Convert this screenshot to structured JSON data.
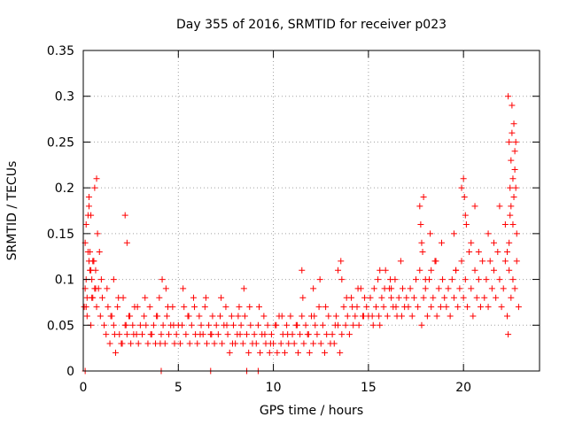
{
  "chart_data": {
    "type": "scatter",
    "title": "Day 355 of 2016, SRMTID for receiver p023",
    "xlabel": "GPS time / hours",
    "ylabel": "SRMTID / TECUs",
    "xlim": [
      0,
      24
    ],
    "ylim": [
      0,
      0.35
    ],
    "xticks": [
      0,
      5,
      10,
      15,
      20
    ],
    "xtick_labels": [
      "0",
      "5",
      "10",
      "15",
      "20"
    ],
    "yticks": [
      0,
      0.05,
      0.1,
      0.15,
      0.2,
      0.25,
      0.3,
      0.35
    ],
    "ytick_labels": [
      "0",
      "0.05",
      "0.1",
      "0.15",
      "0.2",
      "0.25",
      "0.3",
      "0.35"
    ],
    "grid": true,
    "marker": "+",
    "color": "#ff0000",
    "series": [
      {
        "name": "SRMTID",
        "x": [
          0.05,
          0.1,
          0.15,
          0.2,
          0.25,
          0.3,
          0.35,
          0.4,
          0.45,
          0.5,
          0.55,
          0.6,
          0.65,
          0.7,
          0.75,
          0.8,
          0.85,
          0.9,
          0.95,
          1.0,
          0.1,
          0.2,
          0.3,
          0.4,
          0.5,
          0.6,
          0.7,
          0.15,
          0.35,
          0.45,
          0.55,
          0.25,
          0.65,
          0.4,
          0.15,
          0.3,
          1.1,
          1.2,
          1.3,
          1.4,
          1.5,
          1.6,
          1.7,
          1.8,
          1.9,
          2.0,
          2.1,
          2.2,
          2.3,
          2.4,
          2.5,
          2.6,
          2.7,
          2.8,
          2.9,
          3.0,
          1.25,
          1.45,
          1.65,
          1.85,
          2.05,
          2.25,
          2.45,
          2.65,
          2.85,
          2.2,
          2.3,
          1.6,
          3.1,
          3.2,
          3.3,
          3.4,
          3.5,
          3.6,
          3.7,
          3.8,
          3.9,
          4.0,
          4.1,
          4.2,
          4.3,
          4.4,
          4.5,
          4.6,
          4.7,
          4.8,
          4.9,
          5.0,
          3.25,
          3.55,
          3.85,
          4.15,
          4.45,
          4.75,
          4.05,
          4.35,
          5.1,
          5.2,
          5.3,
          5.4,
          5.5,
          5.6,
          5.7,
          5.8,
          5.9,
          6.0,
          6.1,
          6.2,
          6.3,
          6.4,
          6.5,
          6.6,
          6.7,
          6.8,
          6.9,
          7.0,
          5.25,
          5.55,
          5.85,
          6.15,
          6.45,
          6.75,
          7.1,
          7.2,
          7.3,
          7.4,
          7.5,
          7.6,
          7.7,
          7.8,
          7.9,
          8.0,
          8.1,
          8.2,
          8.3,
          8.4,
          8.5,
          8.6,
          8.7,
          8.8,
          8.9,
          9.0,
          7.25,
          7.55,
          7.85,
          8.15,
          8.45,
          8.75,
          8.25,
          9.1,
          9.2,
          9.3,
          9.4,
          9.5,
          9.6,
          9.7,
          9.8,
          9.9,
          10.0,
          10.1,
          10.2,
          10.3,
          10.4,
          10.5,
          10.6,
          10.7,
          10.8,
          10.9,
          11.0,
          9.25,
          9.55,
          9.85,
          10.15,
          10.45,
          10.75,
          11.1,
          11.2,
          11.3,
          11.4,
          11.5,
          11.6,
          11.7,
          11.8,
          11.9,
          12.0,
          12.1,
          12.2,
          12.3,
          12.4,
          12.5,
          12.6,
          12.7,
          12.8,
          12.9,
          13.0,
          11.25,
          11.55,
          11.85,
          12.15,
          12.45,
          12.75,
          11.5,
          12.1,
          13.1,
          13.2,
          13.3,
          13.4,
          13.5,
          13.6,
          13.7,
          13.8,
          13.9,
          14.0,
          14.1,
          14.2,
          14.3,
          14.4,
          14.5,
          14.6,
          14.7,
          14.8,
          14.9,
          15.0,
          13.25,
          13.55,
          13.85,
          14.15,
          14.45,
          14.75,
          13.4,
          13.6,
          15.1,
          15.2,
          15.3,
          15.4,
          15.5,
          15.6,
          15.7,
          15.8,
          15.9,
          16.0,
          16.1,
          16.2,
          16.3,
          16.4,
          16.5,
          16.6,
          16.7,
          16.8,
          16.9,
          17.0,
          15.25,
          15.55,
          15.85,
          16.15,
          16.45,
          16.75,
          15.6,
          16.2,
          17.1,
          17.2,
          17.3,
          17.4,
          17.5,
          17.6,
          17.7,
          17.8,
          17.9,
          18.0,
          18.1,
          18.2,
          18.3,
          18.4,
          18.5,
          18.6,
          18.7,
          18.8,
          18.9,
          19.0,
          17.7,
          17.75,
          17.8,
          17.85,
          18.0,
          18.25,
          18.55,
          18.85,
          17.9,
          18.3,
          19.1,
          19.2,
          19.3,
          19.4,
          19.5,
          19.6,
          19.7,
          19.8,
          19.9,
          20.0,
          20.1,
          20.2,
          20.3,
          20.4,
          20.5,
          20.6,
          20.7,
          20.8,
          20.9,
          21.0,
          19.5,
          19.9,
          20.0,
          20.05,
          20.1,
          20.15,
          20.4,
          20.6,
          20.8,
          19.6,
          21.1,
          21.2,
          21.3,
          21.4,
          21.5,
          21.6,
          21.7,
          21.8,
          21.9,
          22.0,
          22.1,
          22.2,
          22.3,
          22.4,
          22.5,
          22.6,
          22.7,
          22.8,
          22.9,
          21.3,
          21.6,
          21.9,
          22.2,
          22.35,
          22.4,
          22.45,
          22.5,
          22.55,
          22.6,
          22.65,
          22.7,
          22.75,
          22.5,
          22.6,
          22.7,
          22.4,
          22.55,
          22.65,
          22.45,
          22.75,
          22.3,
          22.8,
          22.35,
          0.1,
          4.1,
          6.7,
          8.6,
          9.2
        ],
        "y": [
          0.07,
          0.09,
          0.16,
          0.08,
          0.13,
          0.19,
          0.11,
          0.17,
          0.1,
          0.08,
          0.12,
          0.2,
          0.11,
          0.07,
          0.15,
          0.09,
          0.13,
          0.06,
          0.1,
          0.08,
          0.14,
          0.06,
          0.18,
          0.05,
          0.12,
          0.09,
          0.21,
          0.1,
          0.13,
          0.08,
          0.12,
          0.17,
          0.09,
          0.11,
          0.07,
          0.12,
          0.05,
          0.04,
          0.07,
          0.03,
          0.06,
          0.05,
          0.02,
          0.07,
          0.04,
          0.03,
          0.08,
          0.05,
          0.04,
          0.06,
          0.03,
          0.05,
          0.07,
          0.04,
          0.03,
          0.05,
          0.09,
          0.06,
          0.04,
          0.08,
          0.03,
          0.05,
          0.06,
          0.04,
          0.07,
          0.17,
          0.14,
          0.1,
          0.04,
          0.06,
          0.05,
          0.03,
          0.07,
          0.04,
          0.05,
          0.03,
          0.06,
          0.08,
          0.04,
          0.05,
          0.03,
          0.06,
          0.04,
          0.05,
          0.07,
          0.03,
          0.04,
          0.05,
          0.08,
          0.04,
          0.06,
          0.1,
          0.07,
          0.05,
          0.03,
          0.09,
          0.03,
          0.05,
          0.07,
          0.04,
          0.06,
          0.03,
          0.05,
          0.08,
          0.04,
          0.03,
          0.06,
          0.05,
          0.04,
          0.07,
          0.03,
          0.05,
          0.04,
          0.06,
          0.03,
          0.05,
          0.09,
          0.06,
          0.07,
          0.04,
          0.08,
          0.04,
          0.04,
          0.06,
          0.03,
          0.05,
          0.07,
          0.04,
          0.02,
          0.06,
          0.05,
          0.03,
          0.04,
          0.07,
          0.05,
          0.03,
          0.06,
          0.04,
          0.02,
          0.05,
          0.03,
          0.04,
          0.08,
          0.05,
          0.03,
          0.06,
          0.09,
          0.07,
          0.04,
          0.03,
          0.05,
          0.02,
          0.04,
          0.06,
          0.03,
          0.05,
          0.02,
          0.04,
          0.03,
          0.05,
          0.02,
          0.06,
          0.03,
          0.04,
          0.02,
          0.05,
          0.03,
          0.06,
          0.04,
          0.07,
          0.04,
          0.03,
          0.05,
          0.06,
          0.04,
          0.03,
          0.05,
          0.02,
          0.04,
          0.06,
          0.03,
          0.05,
          0.04,
          0.02,
          0.06,
          0.03,
          0.05,
          0.04,
          0.07,
          0.03,
          0.05,
          0.02,
          0.04,
          0.06,
          0.03,
          0.05,
          0.08,
          0.04,
          0.06,
          0.1,
          0.07,
          0.11,
          0.09,
          0.04,
          0.03,
          0.06,
          0.05,
          0.02,
          0.04,
          0.07,
          0.05,
          0.06,
          0.04,
          0.08,
          0.05,
          0.06,
          0.07,
          0.05,
          0.09,
          0.06,
          0.08,
          0.07,
          0.06,
          0.05,
          0.12,
          0.08,
          0.07,
          0.09,
          0.06,
          0.11,
          0.1,
          0.08,
          0.06,
          0.09,
          0.07,
          0.1,
          0.05,
          0.08,
          0.07,
          0.11,
          0.06,
          0.09,
          0.08,
          0.07,
          0.1,
          0.06,
          0.08,
          0.12,
          0.09,
          0.07,
          0.08,
          0.05,
          0.06,
          0.09,
          0.1,
          0.07,
          0.06,
          0.11,
          0.09,
          0.07,
          0.09,
          0.06,
          0.08,
          0.1,
          0.07,
          0.11,
          0.05,
          0.08,
          0.09,
          0.06,
          0.1,
          0.07,
          0.08,
          0.12,
          0.06,
          0.09,
          0.07,
          0.1,
          0.08,
          0.18,
          0.16,
          0.14,
          0.13,
          0.1,
          0.15,
          0.12,
          0.14,
          0.19,
          0.11,
          0.07,
          0.09,
          0.06,
          0.1,
          0.08,
          0.11,
          0.07,
          0.09,
          0.12,
          0.08,
          0.1,
          0.07,
          0.13,
          0.09,
          0.06,
          0.11,
          0.08,
          0.1,
          0.07,
          0.12,
          0.15,
          0.2,
          0.21,
          0.19,
          0.17,
          0.16,
          0.14,
          0.18,
          0.13,
          0.11,
          0.08,
          0.1,
          0.07,
          0.12,
          0.09,
          0.11,
          0.08,
          0.13,
          0.1,
          0.07,
          0.09,
          0.12,
          0.06,
          0.11,
          0.08,
          0.1,
          0.09,
          0.12,
          0.07,
          0.15,
          0.14,
          0.18,
          0.16,
          0.3,
          0.25,
          0.2,
          0.23,
          0.29,
          0.21,
          0.27,
          0.24,
          0.2,
          0.18,
          0.16,
          0.22,
          0.14,
          0.26,
          0.19,
          0.17,
          0.25,
          0.13,
          0.15,
          0.04,
          0.0,
          0.0,
          0.0,
          0.0,
          0.0
        ]
      }
    ]
  }
}
